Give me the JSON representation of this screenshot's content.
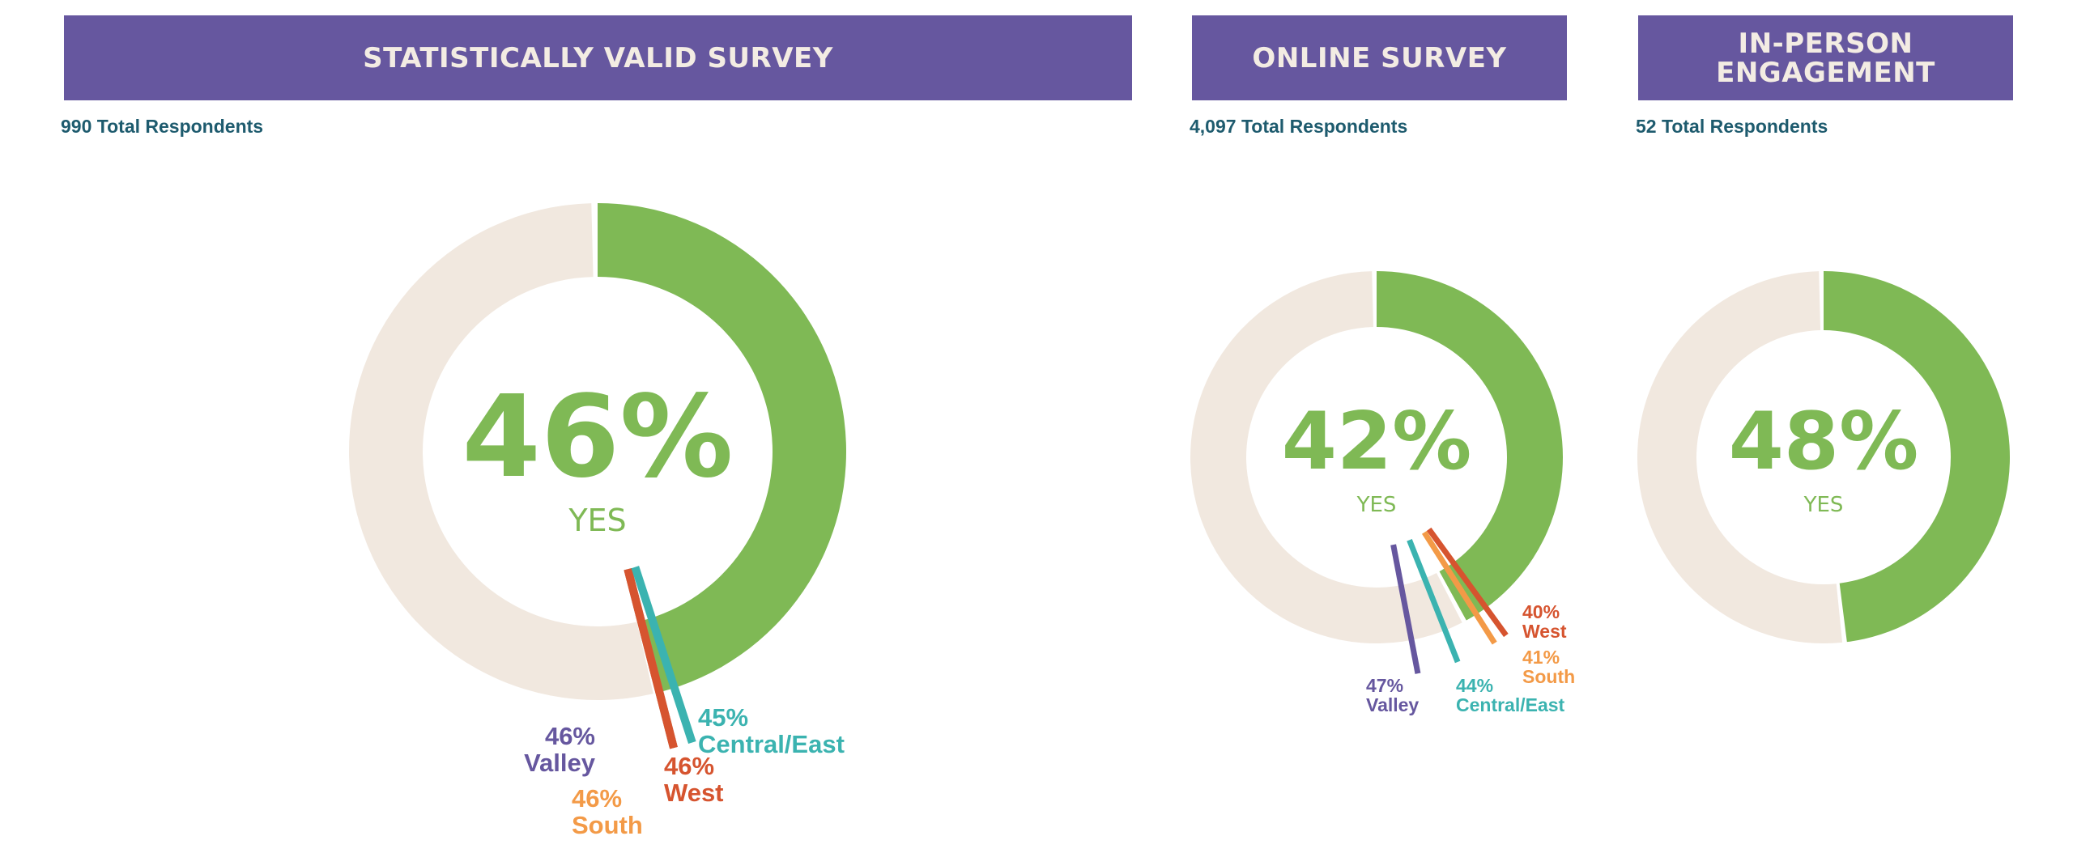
{
  "colors": {
    "banner": "#66579f",
    "banner_text": "#f3ece3",
    "respondents_text": "#1e5b6e",
    "yes": "#7fb955",
    "remainder": "#f1e8df",
    "valley": "#66579f",
    "south": "#f39a47",
    "west": "#d6542f",
    "central_east": "#3bb3b0"
  },
  "panels": {
    "statistical": {
      "title": "STATISTICALLY VALID SURVEY",
      "respondents": "990 Total Respondents"
    },
    "online": {
      "title": "ONLINE SURVEY",
      "respondents": "4,097 Total Respondents"
    },
    "in_person": {
      "title_line1": "IN-PERSON",
      "title_line2": "ENGAGEMENT",
      "respondents": "52 Total Respondents"
    }
  },
  "chart_data": [
    {
      "type": "pie",
      "title": "STATISTICALLY VALID SURVEY",
      "subtitle": "990 Total Respondents",
      "center_label": "46%",
      "center_sublabel": "YES",
      "slices": [
        {
          "name": "YES",
          "value": 46
        },
        {
          "name": "",
          "value": 54
        }
      ],
      "regions": [
        {
          "name": "Valley",
          "value": 46,
          "pct_label": "46%",
          "color_key": "valley"
        },
        {
          "name": "South",
          "value": 46,
          "pct_label": "46%",
          "color_key": "south"
        },
        {
          "name": "West",
          "value": 46,
          "pct_label": "46%",
          "color_key": "west"
        },
        {
          "name": "Central/East",
          "value": 45,
          "pct_label": "45%",
          "color_key": "central_east"
        }
      ]
    },
    {
      "type": "pie",
      "title": "ONLINE SURVEY",
      "subtitle": "4,097 Total Respondents",
      "center_label": "42%",
      "center_sublabel": "YES",
      "slices": [
        {
          "name": "YES",
          "value": 42
        },
        {
          "name": "",
          "value": 58
        }
      ],
      "regions": [
        {
          "name": "Valley",
          "value": 47,
          "pct_label": "47%",
          "color_key": "valley"
        },
        {
          "name": "Central/East",
          "value": 44,
          "pct_label": "44%",
          "color_key": "central_east"
        },
        {
          "name": "South",
          "value": 41,
          "pct_label": "41%",
          "color_key": "south"
        },
        {
          "name": "West",
          "value": 40,
          "pct_label": "40%",
          "color_key": "west"
        }
      ]
    },
    {
      "type": "pie",
      "title": "IN-PERSON ENGAGEMENT",
      "subtitle": "52 Total Respondents",
      "center_label": "48%",
      "center_sublabel": "YES",
      "slices": [
        {
          "name": "YES",
          "value": 48
        },
        {
          "name": "",
          "value": 52
        }
      ],
      "regions": []
    }
  ]
}
